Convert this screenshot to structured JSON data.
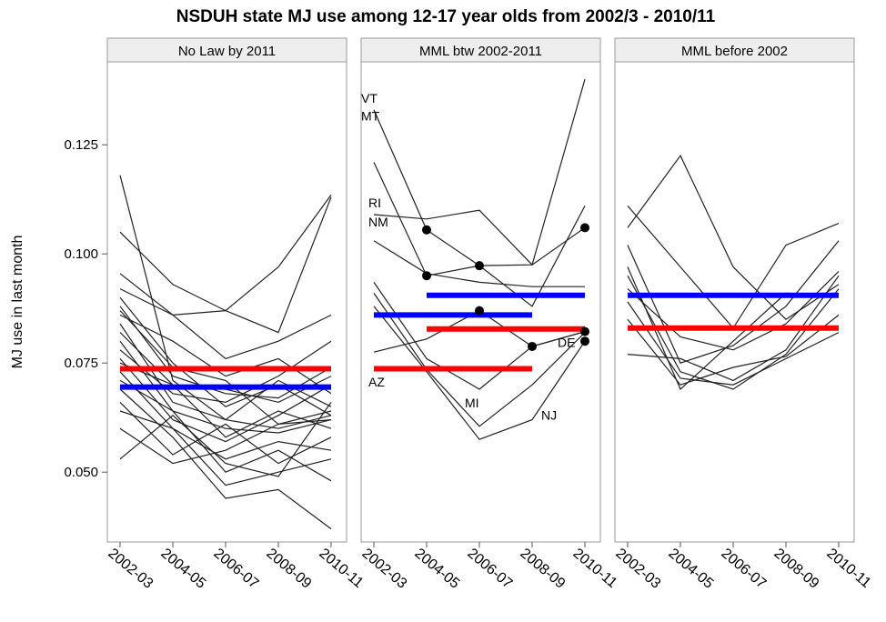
{
  "chart_data": [
    {
      "type": "line",
      "title": "NSDUH state MJ use among 12-17 year olds from 2002/3 - 2010/11",
      "y_label": "MJ use in last month",
      "strip_title": "No Law by 2011",
      "categories": [
        "2002-03",
        "2004-05",
        "2006-07",
        "2008-09",
        "2010-11"
      ],
      "ylim": [
        0.034,
        0.144
      ],
      "yticks": [
        {
          "value": 0.05,
          "label": "0.050"
        },
        0.075,
        {
          "value": 0.1,
          "label": "0.100"
        },
        0.125
      ],
      "line_color": "#222222",
      "series": [
        {
          "values": [
            0.118,
            0.071,
            0.062,
            0.06,
            0.063
          ]
        },
        {
          "values": [
            0.105,
            0.093,
            0.087,
            0.097,
            0.1135
          ]
        },
        {
          "values": [
            0.0955,
            0.086,
            0.087,
            0.082,
            0.113
          ]
        },
        {
          "values": [
            0.092,
            0.086,
            0.076,
            0.08,
            0.086
          ]
        },
        {
          "values": [
            0.09,
            0.075,
            0.065,
            0.07,
            0.063
          ]
        },
        {
          "values": [
            0.088,
            0.072,
            0.068,
            0.067,
            0.074
          ]
        },
        {
          "values": [
            0.086,
            0.08,
            0.072,
            0.076,
            0.068
          ]
        },
        {
          "values": [
            0.084,
            0.066,
            0.062,
            0.071,
            0.065
          ]
        },
        {
          "values": [
            0.082,
            0.07,
            0.058,
            0.064,
            0.06
          ]
        },
        {
          "values": [
            0.08,
            0.064,
            0.06,
            0.059,
            0.062
          ]
        },
        {
          "values": [
            0.078,
            0.068,
            0.066,
            0.072,
            0.08
          ]
        },
        {
          "values": [
            0.076,
            0.062,
            0.057,
            0.063,
            0.07
          ]
        },
        {
          "values": [
            0.075,
            0.07,
            0.069,
            0.066,
            0.072
          ]
        },
        {
          "values": [
            0.073,
            0.06,
            0.053,
            0.057,
            0.055
          ]
        },
        {
          "values": [
            0.071,
            0.064,
            0.05,
            0.055,
            0.048
          ]
        },
        {
          "values": [
            0.069,
            0.058,
            0.044,
            0.046,
            0.037
          ]
        },
        {
          "values": [
            0.066,
            0.054,
            0.061,
            0.052,
            0.058
          ]
        },
        {
          "values": [
            0.064,
            0.06,
            0.047,
            0.05,
            0.053
          ]
        },
        {
          "values": [
            0.06,
            0.052,
            0.055,
            0.061,
            0.064
          ]
        },
        {
          "values": [
            0.053,
            0.063,
            0.052,
            0.049,
            0.066
          ]
        },
        {
          "values": [
            0.087,
            0.074,
            0.071,
            0.061,
            0.062
          ]
        }
      ],
      "reference_lines": [
        {
          "color": "#ff0000",
          "value": 0.0737,
          "from": "2002-03",
          "to": "2010-11"
        },
        {
          "color": "#0000ff",
          "value": 0.0695,
          "from": "2002-03",
          "to": "2010-11"
        }
      ]
    },
    {
      "type": "line",
      "strip_title": "MML btw 2002-2011",
      "categories": [
        "2002-03",
        "2004-05",
        "2006-07",
        "2008-09",
        "2010-11"
      ],
      "ylim": [
        0.034,
        0.144
      ],
      "line_color": "#222222",
      "series": [
        {
          "name": "VT",
          "values": [
            0.133,
            0.1055,
            0.0973,
            0.088,
            0.111
          ]
        },
        {
          "name": "MT",
          "values": [
            0.121,
            0.095,
            0.0973,
            0.0975,
            0.14
          ]
        },
        {
          "name": "RI",
          "values": [
            0.109,
            0.108,
            0.11,
            0.0975,
            0.106
          ]
        },
        {
          "name": "NM",
          "values": [
            0.103,
            0.0955,
            0.0935,
            0.0925,
            0.0925
          ]
        },
        {
          "name": "AZ",
          "values": [
            0.0775,
            0.0805,
            0.087,
            0.0788,
            0.0822
          ]
        },
        {
          "name": "MI",
          "values": [
            0.0935,
            0.076,
            0.069,
            0.0788,
            0.0822
          ]
        },
        {
          "name": "DE",
          "values": [
            0.091,
            0.0735,
            0.0605,
            0.07,
            0.082
          ]
        },
        {
          "name": "NJ",
          "values": [
            0.088,
            0.073,
            0.0575,
            0.062,
            0.08
          ]
        }
      ],
      "points": {
        "x": [
          "2004-05",
          "2004-05",
          "2006-07",
          "2006-07",
          "2008-09",
          "2010-11",
          "2010-11",
          "2010-11"
        ],
        "values": [
          0.1055,
          0.095,
          0.0973,
          0.087,
          0.0788,
          0.106,
          0.0822,
          0.08
        ]
      },
      "reference_lines": [
        {
          "color": "#0000ff",
          "value": 0.0905,
          "from": "2004-05",
          "to": "2010-11"
        },
        {
          "color": "#0000ff",
          "value": 0.086,
          "from": "2002-03",
          "to": "2008-09"
        },
        {
          "color": "#ff0000",
          "value": 0.0828,
          "from": "2004-05",
          "to": "2010-11"
        },
        {
          "color": "#ff0000",
          "value": 0.0737,
          "from": "2002-03",
          "to": "2008-09"
        }
      ]
    },
    {
      "type": "line",
      "strip_title": "MML before 2002",
      "categories": [
        "2002-03",
        "2004-05",
        "2006-07",
        "2008-09",
        "2010-11"
      ],
      "ylim": [
        0.034,
        0.144
      ],
      "line_color": "#222222",
      "series": [
        {
          "values": [
            0.111,
            0.097,
            0.083,
            0.102,
            0.107
          ]
        },
        {
          "values": [
            0.106,
            0.1225,
            0.097,
            0.085,
            0.093
          ]
        },
        {
          "values": [
            0.102,
            0.075,
            0.079,
            0.088,
            0.103
          ]
        },
        {
          "values": [
            0.097,
            0.069,
            0.08,
            0.091,
            0.0905
          ]
        },
        {
          "values": [
            0.095,
            0.073,
            0.069,
            0.077,
            0.092
          ]
        },
        {
          "values": [
            0.089,
            0.0715,
            0.07,
            0.076,
            0.082
          ]
        },
        {
          "values": [
            0.077,
            0.076,
            0.071,
            0.078,
            0.095
          ]
        },
        {
          "values": [
            0.092,
            0.081,
            0.078,
            0.084,
            0.096
          ]
        },
        {
          "values": [
            0.085,
            0.07,
            0.074,
            0.0765,
            0.086
          ]
        }
      ],
      "reference_lines": [
        {
          "color": "#0000ff",
          "value": 0.0905,
          "from": "2002-03",
          "to": "2010-11"
        },
        {
          "color": "#ff0000",
          "value": 0.083,
          "from": "2002-03",
          "to": "2010-11"
        }
      ]
    }
  ]
}
